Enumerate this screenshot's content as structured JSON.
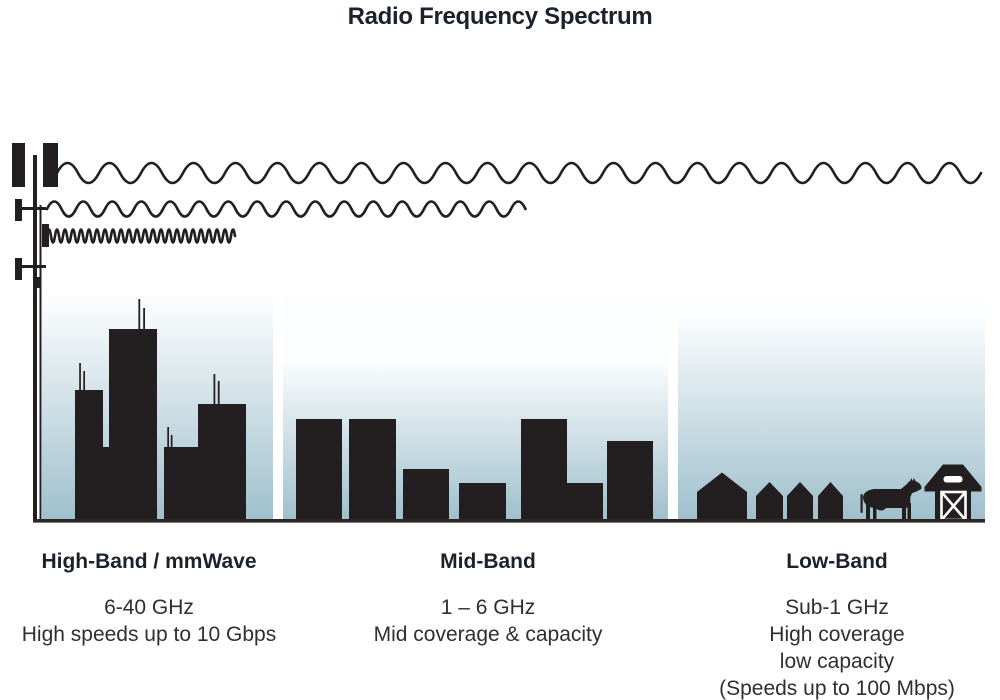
{
  "title": "Radio Frequency Spectrum",
  "colors": {
    "ink": "#231f20",
    "heading": "#1c222b",
    "body_text": "#2f2f33",
    "sky_top": "#fdfeff",
    "sky_bottom": "#9fc0cc",
    "ground": "#2a2725"
  },
  "icons": {
    "cell_tower": "cell-tower-icon",
    "long_wave": "long-wavelength-wave-icon",
    "medium_wave": "medium-wavelength-wave-icon",
    "short_wave": "short-wavelength-wave-icon",
    "large_city": "city-skyline-large-icon",
    "medium_city": "city-skyline-medium-icon",
    "houses": "village-houses-icon",
    "cow": "cow-icon",
    "barn": "barn-icon"
  },
  "bands": [
    {
      "name": "High-Band / mmWave",
      "lines": [
        "6-40 GHz",
        "High speeds up to 10 Gbps"
      ]
    },
    {
      "name": "Mid-Band",
      "lines": [
        "1 – 6 GHz",
        "Mid coverage & capacity"
      ]
    },
    {
      "name": "Low-Band",
      "lines": [
        "Sub-1 GHz",
        "High coverage",
        "low capacity",
        "(Speeds up to 100 Mbps)"
      ]
    }
  ]
}
